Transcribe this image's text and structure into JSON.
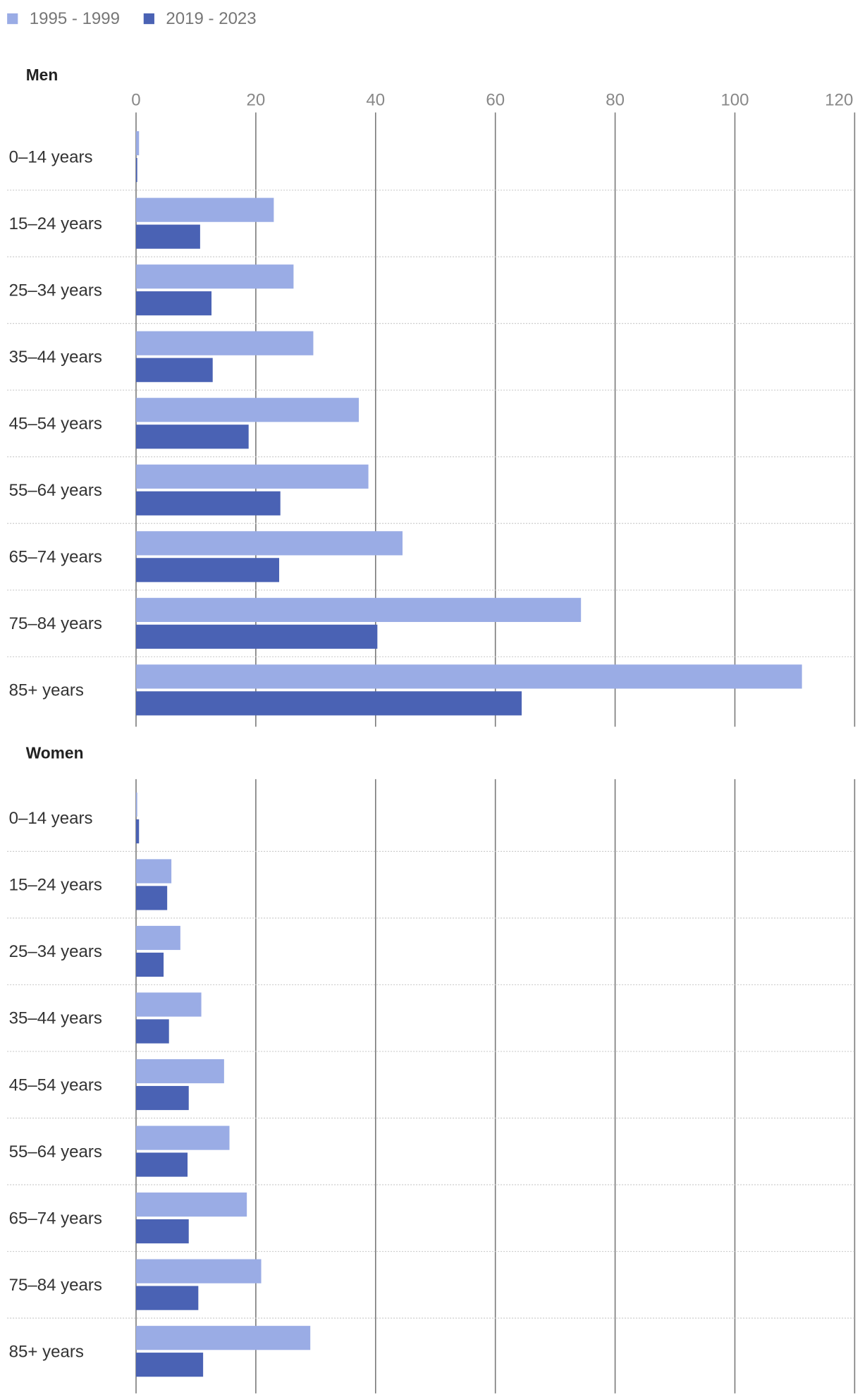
{
  "legend": [
    {
      "label": "1995 - 1999",
      "color": "#9aacE5"
    },
    {
      "label": "2019 - 2023",
      "color": "#4a62b4"
    }
  ],
  "chart_data": {
    "type": "bar",
    "orientation": "horizontal",
    "xlim": [
      0,
      120
    ],
    "xticks": [
      "0",
      "20",
      "40",
      "60",
      "80",
      "100",
      "120"
    ],
    "grid": true,
    "legend_position": "top-left",
    "categories": [
      "0–14 years",
      "15–24 years",
      "25–34 years",
      "35–44 years",
      "45–54 years",
      "55–64 years",
      "65–74 years",
      "75–84 years",
      "85+ years"
    ],
    "panels": [
      {
        "title": "Men",
        "series": [
          {
            "name": "1995 - 1999",
            "values": [
              0.5,
              23,
              26.3,
              29.6,
              37.2,
              38.8,
              44.5,
              74.3,
              111.2
            ]
          },
          {
            "name": "2019 - 2023",
            "values": [
              0.2,
              10.7,
              12.6,
              12.8,
              18.8,
              24.1,
              23.9,
              40.3,
              64.4
            ]
          }
        ]
      },
      {
        "title": "Women",
        "series": [
          {
            "name": "1995 - 1999",
            "values": [
              0.2,
              5.9,
              7.4,
              10.9,
              14.7,
              15.6,
              18.5,
              20.9,
              29.1
            ]
          },
          {
            "name": "2019 - 2023",
            "values": [
              0.5,
              5.2,
              4.6,
              5.5,
              8.8,
              8.6,
              8.8,
              10.4,
              11.2
            ]
          }
        ]
      }
    ]
  }
}
